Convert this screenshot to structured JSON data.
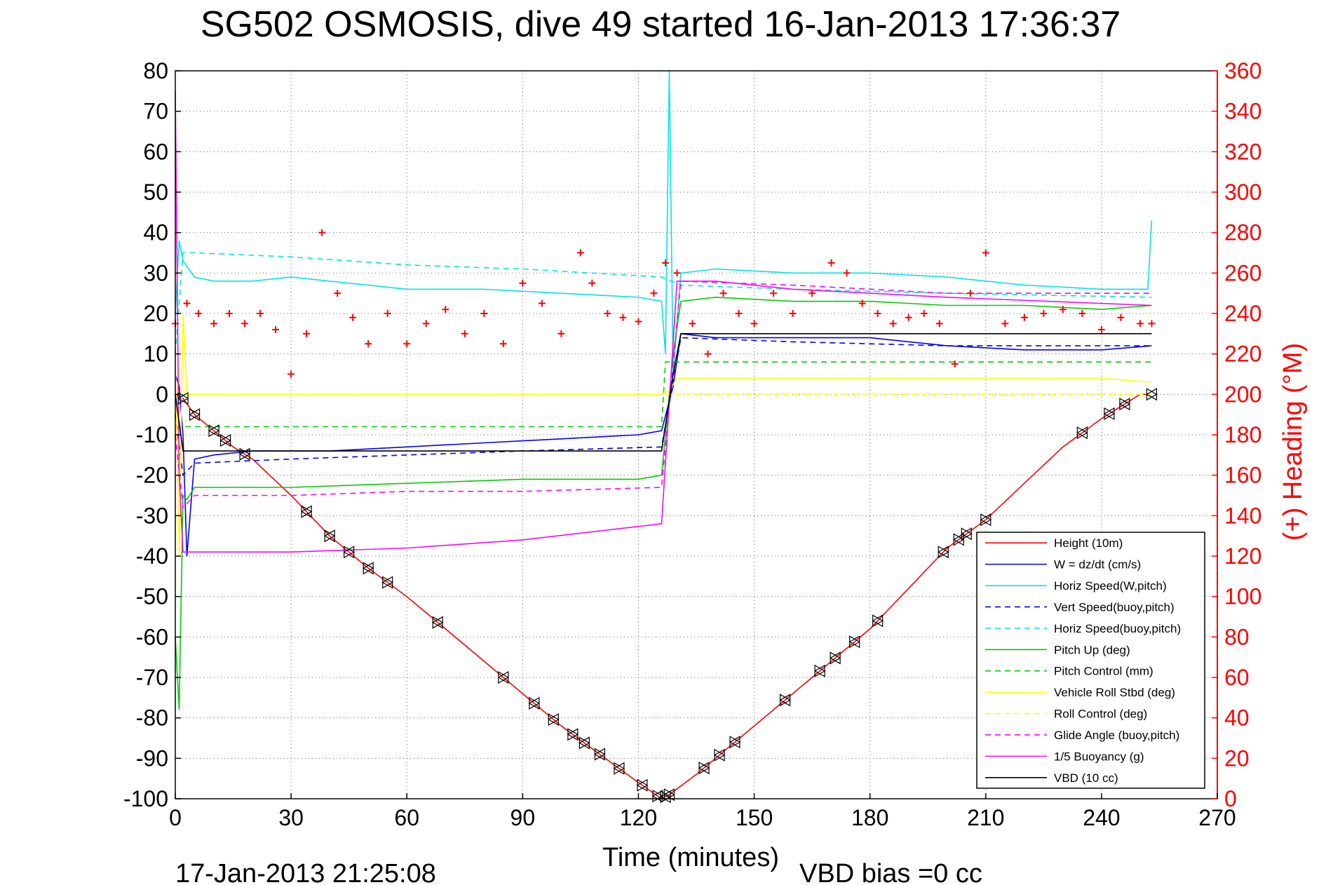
{
  "chart_data": {
    "type": "line",
    "title": "SG502 OSMOSIS, dive 49 started 16-Jan-2013 17:36:37",
    "xlabel": "Time (minutes)",
    "ylabel": "",
    "y2label": "(+) Heading (°M)",
    "xlim": [
      0,
      270
    ],
    "ylim": [
      -100,
      80
    ],
    "y2lim": [
      0,
      360
    ],
    "x_ticks": [
      "0",
      "30",
      "60",
      "90",
      "120",
      "150",
      "180",
      "210",
      "240",
      "270"
    ],
    "y_ticks": [
      "80",
      "70",
      "60",
      "50",
      "40",
      "30",
      "20",
      "10",
      "0",
      "-10",
      "-20",
      "-30",
      "-40",
      "-50",
      "-60",
      "-70",
      "-80",
      "-90",
      "-100"
    ],
    "y2_ticks": [
      "360",
      "340",
      "320",
      "300",
      "280",
      "260",
      "240",
      "220",
      "200",
      "180",
      "160",
      "140",
      "120",
      "100",
      "80",
      "60",
      "40",
      "20",
      "0"
    ],
    "grid": true,
    "legend_position": "bottom-right",
    "footer_left": "17-Jan-2013 21:25:08",
    "footer_right": "VBD bias =0 cc",
    "legend": [
      {
        "label": "Height (10m)",
        "color": "#ff0000",
        "dash": "solid"
      },
      {
        "label": "W = dz/dt (cm/s)",
        "color": "#0000ff",
        "dash": "solid"
      },
      {
        "label": "Horiz Speed(W,pitch)",
        "color": "#00e5e5",
        "dash": "solid"
      },
      {
        "label": "Vert Speed(buoy,pitch)",
        "color": "#0000ff",
        "dash": "dashed"
      },
      {
        "label": "Horiz Speed(buoy,pitch)",
        "color": "#00e5e5",
        "dash": "dashed"
      },
      {
        "label": "Pitch Up (deg)",
        "color": "#00cc00",
        "dash": "solid"
      },
      {
        "label": "Pitch Control (mm)",
        "color": "#00cc00",
        "dash": "dashed"
      },
      {
        "label": "Vehicle Roll Stbd (deg)",
        "color": "#ffff00",
        "dash": "solid"
      },
      {
        "label": "Roll Control (deg)",
        "color": "#ffff00",
        "dash": "dashed"
      },
      {
        "label": "Glide Angle (buoy,pitch)",
        "color": "#ff00ff",
        "dash": "dashed"
      },
      {
        "label": "1/5 Buoyancy (g)",
        "color": "#ff00ff",
        "dash": "solid"
      },
      {
        "label": "VBD (10 cc)",
        "color": "#000000",
        "dash": "solid"
      }
    ],
    "series": [
      {
        "name": "Height (10m)",
        "color": "#ff0000",
        "x": [
          0,
          2,
          5,
          10,
          15,
          20,
          30,
          40,
          50,
          60,
          70,
          80,
          90,
          100,
          110,
          120,
          126,
          128,
          135,
          145,
          160,
          170,
          180,
          190,
          200,
          210,
          220,
          230,
          240,
          250,
          253
        ],
        "y": [
          0,
          -1,
          -5,
          -9,
          -13,
          -16,
          -25,
          -35,
          -43,
          -50,
          -58,
          -66,
          -74,
          -82,
          -89,
          -96,
          -100,
          -99,
          -94,
          -86,
          -74,
          -66,
          -58,
          -48,
          -38,
          -31,
          -22,
          -13,
          -6,
          0,
          0
        ]
      },
      {
        "name": "W = dz/dt (cm/s)",
        "color": "#0000ff",
        "x": [
          0,
          1,
          2,
          3,
          5,
          10,
          20,
          30,
          40,
          60,
          80,
          100,
          120,
          126,
          129,
          131,
          140,
          160,
          180,
          200,
          220,
          240,
          253
        ],
        "y": [
          5,
          2,
          -10,
          -40,
          -16,
          -15,
          -14,
          -14,
          -14,
          -13,
          -12,
          -11,
          -10,
          -9,
          2,
          15,
          14,
          14,
          14,
          12,
          11,
          11,
          12
        ]
      },
      {
        "name": "Horiz Speed(W,pitch)",
        "color": "#00e5e5",
        "x": [
          0,
          1,
          2,
          5,
          10,
          20,
          30,
          40,
          60,
          80,
          100,
          120,
          126,
          127,
          128,
          129,
          131,
          140,
          160,
          180,
          200,
          220,
          240,
          252,
          253
        ],
        "y": [
          20,
          38,
          33,
          29,
          28,
          28,
          29,
          28,
          26,
          26,
          25,
          24,
          23,
          10,
          80,
          5,
          30,
          31,
          30,
          30,
          29,
          27,
          26,
          26,
          43
        ]
      },
      {
        "name": "Vert Speed(buoy,pitch)",
        "color": "#0000ff",
        "x": [
          0,
          2,
          5,
          30,
          60,
          90,
          126,
          131,
          160,
          200,
          253
        ],
        "y": [
          -5,
          -20,
          -17,
          -16,
          -15,
          -14,
          -13,
          14,
          13,
          12,
          12
        ]
      },
      {
        "name": "Horiz Speed(buoy,pitch)",
        "color": "#00e5e5",
        "x": [
          0,
          2,
          5,
          30,
          60,
          90,
          126,
          131,
          160,
          200,
          253
        ],
        "y": [
          10,
          35,
          35,
          34,
          32,
          31,
          29,
          27,
          26,
          25,
          24
        ]
      },
      {
        "name": "Pitch Up (deg)",
        "color": "#00cc00",
        "x": [
          0,
          1,
          2,
          3,
          5,
          10,
          30,
          60,
          90,
          120,
          126,
          129,
          131,
          140,
          160,
          180,
          200,
          220,
          240,
          253
        ],
        "y": [
          -60,
          -78,
          -25,
          -26,
          -23,
          -23,
          -23,
          -22,
          -21,
          -21,
          -20,
          10,
          23,
          24,
          23,
          23,
          22,
          22,
          21,
          22
        ]
      },
      {
        "name": "Pitch Control (mm)",
        "color": "#00cc00",
        "x": [
          0,
          2,
          126,
          127,
          253
        ],
        "y": [
          -8,
          -8,
          -8,
          8,
          8
        ]
      },
      {
        "name": "Vehicle Roll Stbd (deg)",
        "color": "#ffff00",
        "x": [
          0,
          1,
          2,
          3,
          5,
          10,
          20,
          30,
          60,
          90,
          120,
          126,
          128,
          130,
          150,
          160,
          180,
          200,
          220,
          240,
          253
        ],
        "y": [
          10,
          -40,
          20,
          0,
          0,
          0,
          0,
          0,
          0,
          0,
          0,
          0,
          1,
          4,
          4,
          4,
          4,
          4,
          4,
          4,
          3
        ]
      },
      {
        "name": "Roll Control (deg)",
        "color": "#ffff00",
        "x": [
          0,
          126,
          127,
          253
        ],
        "y": [
          0,
          0,
          0,
          0
        ]
      },
      {
        "name": "Glide Angle (buoy,pitch)",
        "color": "#ff00ff",
        "x": [
          0,
          2,
          5,
          30,
          60,
          90,
          126,
          131,
          160,
          200,
          253
        ],
        "y": [
          -10,
          -28,
          -25,
          -25,
          -24,
          -24,
          -23,
          28,
          27,
          25,
          25
        ]
      },
      {
        "name": "1/5 Buoyancy (g)",
        "color": "#ff00ff",
        "x": [
          0,
          1,
          2,
          5,
          30,
          60,
          90,
          126,
          130,
          140,
          160,
          200,
          253
        ],
        "y": [
          75,
          -20,
          -39,
          -39,
          -39,
          -38,
          -36,
          -32,
          28,
          28,
          26,
          24,
          22
        ]
      },
      {
        "name": "VBD (10 cc)",
        "color": "#000000",
        "x": [
          0,
          2,
          5,
          126,
          129,
          131,
          253
        ],
        "y": [
          0,
          -14,
          -14,
          -14,
          5,
          15,
          15
        ]
      }
    ],
    "heading_series": {
      "name": "(+) Heading",
      "color": "#ff0000",
      "marker": "+",
      "x": [
        0,
        3,
        6,
        10,
        14,
        18,
        22,
        26,
        30,
        34,
        38,
        42,
        46,
        50,
        55,
        60,
        65,
        70,
        75,
        80,
        85,
        90,
        95,
        100,
        105,
        108,
        112,
        116,
        120,
        124,
        127,
        130,
        134,
        138,
        142,
        146,
        150,
        155,
        160,
        165,
        170,
        174,
        178,
        182,
        186,
        190,
        194,
        198,
        202,
        206,
        210,
        215,
        220,
        225,
        230,
        235,
        240,
        245,
        250,
        253
      ],
      "y": [
        235,
        245,
        240,
        235,
        240,
        235,
        240,
        232,
        210,
        230,
        280,
        250,
        238,
        225,
        240,
        225,
        235,
        242,
        230,
        240,
        225,
        255,
        245,
        230,
        270,
        255,
        240,
        238,
        236,
        250,
        265,
        260,
        235,
        220,
        250,
        240,
        235,
        250,
        240,
        250,
        265,
        260,
        245,
        240,
        235,
        238,
        240,
        235,
        215,
        250,
        270,
        235,
        238,
        240,
        242,
        240,
        232,
        238,
        235,
        235
      ]
    },
    "height_markers_x": [
      2,
      5,
      10,
      13,
      18,
      34,
      40,
      45,
      50,
      55,
      68,
      85,
      93,
      98,
      103,
      106,
      110,
      115,
      121,
      125,
      127,
      128,
      137,
      141,
      145,
      158,
      167,
      171,
      176,
      182,
      199,
      203,
      205,
      210,
      235,
      242,
      246,
      253
    ]
  }
}
